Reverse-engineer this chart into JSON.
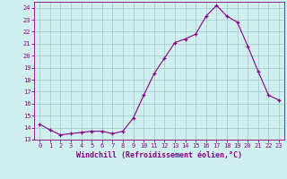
{
  "x": [
    0,
    1,
    2,
    3,
    4,
    5,
    6,
    7,
    8,
    9,
    10,
    11,
    12,
    13,
    14,
    15,
    16,
    17,
    18,
    19,
    20,
    21,
    22,
    23
  ],
  "y": [
    14.3,
    13.8,
    13.4,
    13.5,
    13.6,
    13.7,
    13.7,
    13.5,
    13.7,
    14.8,
    16.7,
    18.5,
    19.8,
    21.1,
    21.4,
    21.8,
    23.3,
    24.2,
    23.3,
    22.8,
    20.8,
    18.7,
    16.7,
    16.3
  ],
  "line_color": "#880088",
  "marker": "+",
  "bg_color": "#d0f0f0",
  "grid_color": "#aacccc",
  "xlabel": "Windchill (Refroidissement éolien,°C)",
  "xlabel_color": "#880088",
  "tick_color": "#880088",
  "xlim": [
    -0.5,
    23.5
  ],
  "ylim": [
    13.0,
    24.5
  ],
  "yticks": [
    13,
    14,
    15,
    16,
    17,
    18,
    19,
    20,
    21,
    22,
    23,
    24
  ],
  "xticks": [
    0,
    1,
    2,
    3,
    4,
    5,
    6,
    7,
    8,
    9,
    10,
    11,
    12,
    13,
    14,
    15,
    16,
    17,
    18,
    19,
    20,
    21,
    22,
    23
  ],
  "spine_color": "#880088"
}
